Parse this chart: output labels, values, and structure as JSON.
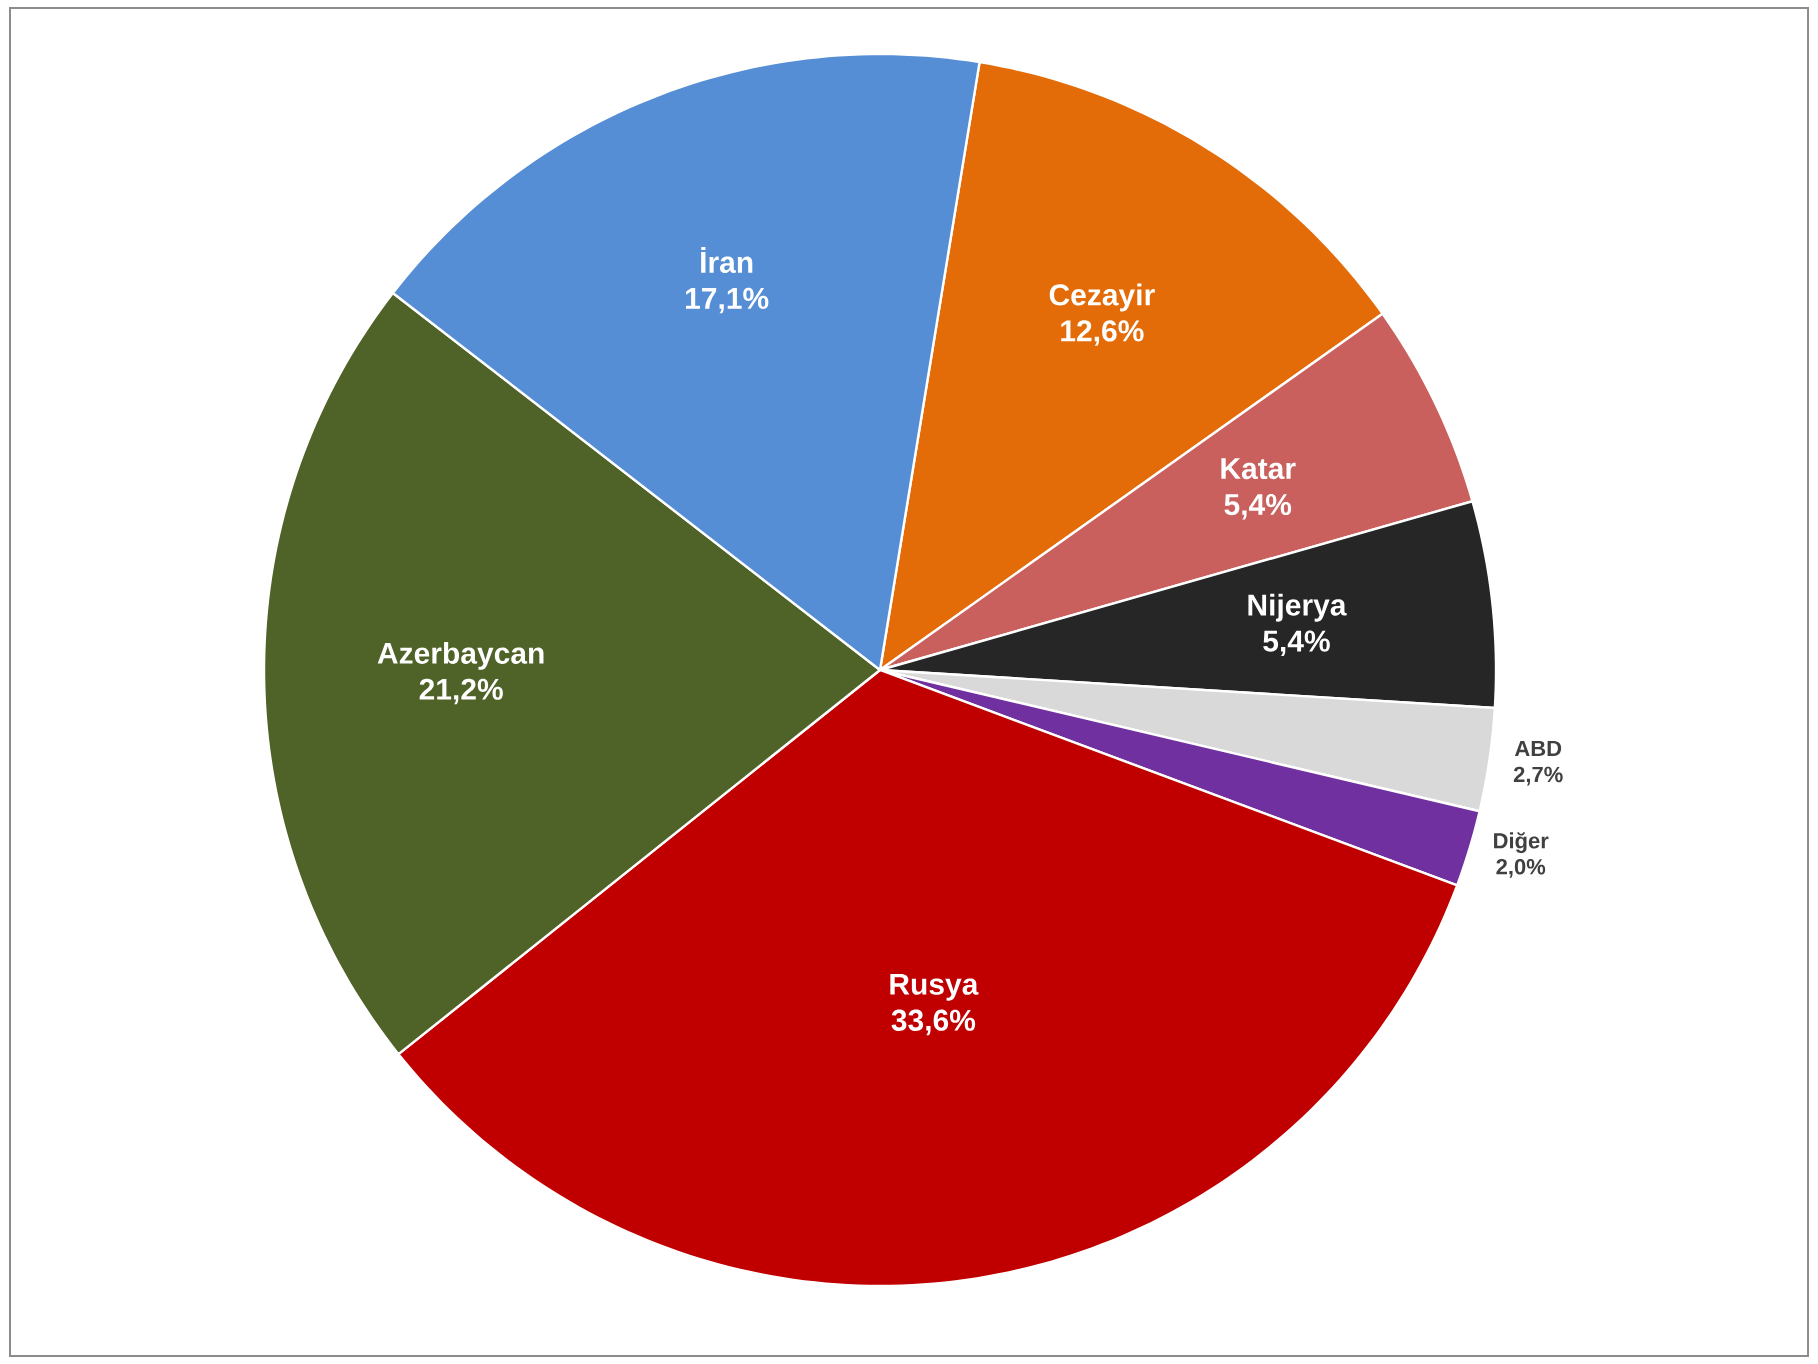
{
  "chart_data": {
    "type": "pie",
    "categories": [
      "Cezayir",
      "Katar",
      "Nijerya",
      "ABD",
      "Diğer",
      "Rusya",
      "Azerbaycan",
      "İran"
    ],
    "values": [
      12.6,
      5.4,
      5.4,
      2.7,
      2.0,
      33.6,
      21.2,
      17.1
    ],
    "colors": [
      "#e36c09",
      "#c9605e",
      "#262626",
      "#d9d9d9",
      "#7030a0",
      "#c00000",
      "#4f6228",
      "#558ed5"
    ],
    "value_labels": [
      "12,6%",
      "5,4%",
      "5,4%",
      "2,7%",
      "2,0%",
      "33,6%",
      "21,2%",
      "17,1%"
    ]
  }
}
